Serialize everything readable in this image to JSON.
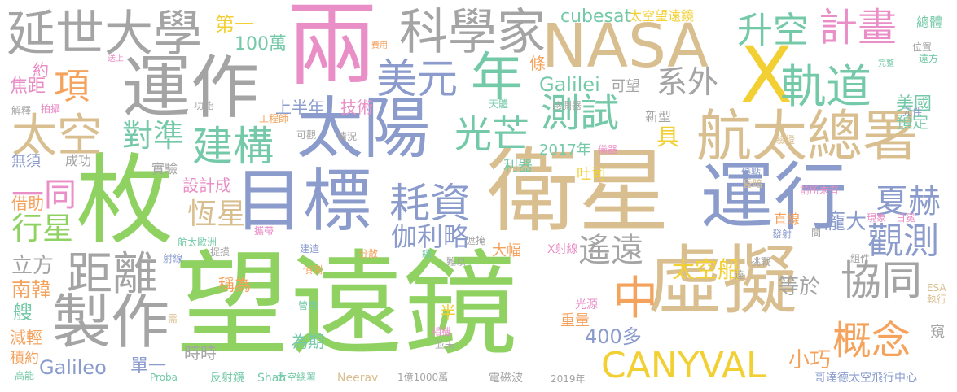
{
  "colors": {
    "green": "#8fd262",
    "tan": "#d9bf90",
    "blue": "#8a9bcc",
    "gray": "#a4a4a4",
    "pink": "#e98ec6",
    "yellow": "#f2d033",
    "orange": "#f5a25c",
    "teal": "#74c9a8"
  },
  "words": [
    {
      "text": "望遠鏡",
      "color": "green"
    },
    {
      "text": "衛星",
      "color": "tan"
    },
    {
      "text": "運行",
      "color": "blue"
    },
    {
      "text": "枚",
      "color": "green"
    },
    {
      "text": "目標",
      "color": "blue"
    },
    {
      "text": "兩",
      "color": "pink"
    },
    {
      "text": "虛擬",
      "color": "tan"
    },
    {
      "text": "運作",
      "color": "gray"
    },
    {
      "text": "太陽",
      "color": "blue"
    },
    {
      "text": "NASA",
      "color": "tan"
    },
    {
      "text": "X",
      "color": "yellow"
    },
    {
      "text": "製作",
      "color": "gray"
    },
    {
      "text": "航太總署",
      "color": "tan"
    },
    {
      "text": "延世大學",
      "color": "gray"
    },
    {
      "text": "科學家",
      "color": "gray"
    },
    {
      "text": "距離",
      "color": "gray"
    },
    {
      "text": "年",
      "color": "teal"
    },
    {
      "text": "耗資",
      "color": "blue"
    },
    {
      "text": "建構",
      "color": "teal"
    },
    {
      "text": "美元",
      "color": "blue"
    },
    {
      "text": "太空",
      "color": "tan"
    },
    {
      "text": "測試",
      "color": "teal"
    },
    {
      "text": "光芒",
      "color": "teal"
    },
    {
      "text": "軌道",
      "color": "teal"
    },
    {
      "text": "計畫",
      "color": "pink"
    },
    {
      "text": "升空",
      "color": "teal"
    },
    {
      "text": "中",
      "color": "orange"
    },
    {
      "text": "協同",
      "color": "gray"
    },
    {
      "text": "概念",
      "color": "orange"
    },
    {
      "text": "觀測",
      "color": "blue"
    },
    {
      "text": "CANYVAL",
      "color": "yellow"
    },
    {
      "text": "遙遠",
      "color": "gray"
    },
    {
      "text": "對準",
      "color": "teal"
    },
    {
      "text": "項",
      "color": "orange"
    },
    {
      "text": "恆星",
      "color": "tan"
    },
    {
      "text": "伽利略",
      "color": "blue"
    },
    {
      "text": "夏赫",
      "color": "blue"
    },
    {
      "text": "一同",
      "color": "pink"
    },
    {
      "text": "行星",
      "color": "green"
    },
    {
      "text": "系外",
      "color": "gray"
    },
    {
      "text": "Galileo",
      "color": "blue"
    },
    {
      "text": "Galilei",
      "color": "teal"
    },
    {
      "text": "cubesat",
      "color": "teal"
    },
    {
      "text": "400多",
      "color": "blue"
    },
    {
      "text": "小巧",
      "color": "orange"
    },
    {
      "text": "太空船",
      "color": "yellow"
    },
    {
      "text": "龐大",
      "color": "blue"
    },
    {
      "text": "美國",
      "color": "teal"
    },
    {
      "text": "具",
      "color": "yellow"
    },
    {
      "text": "等於",
      "color": "gray"
    },
    {
      "text": "第一",
      "color": "yellow"
    },
    {
      "text": "100萬",
      "color": "teal"
    },
    {
      "text": "立方",
      "color": "gray"
    },
    {
      "text": "南韓",
      "color": "orange"
    },
    {
      "text": "艘",
      "color": "teal"
    },
    {
      "text": "焦距",
      "color": "pink"
    },
    {
      "text": "約",
      "color": "pink"
    },
    {
      "text": "條",
      "color": "orange"
    },
    {
      "text": "技術",
      "color": "pink"
    },
    {
      "text": "設計成",
      "color": "pink"
    },
    {
      "text": "重量",
      "color": "orange"
    },
    {
      "text": "稱為",
      "color": "orange"
    },
    {
      "text": "為期",
      "color": "teal"
    },
    {
      "text": "借助",
      "color": "orange"
    },
    {
      "text": "減輕",
      "color": "orange"
    },
    {
      "text": "積約",
      "color": "orange"
    },
    {
      "text": "上半年",
      "color": "blue"
    },
    {
      "text": "2017年",
      "color": "teal"
    },
    {
      "text": "單一",
      "color": "blue"
    },
    {
      "text": "時時",
      "color": "gray"
    },
    {
      "text": "成功",
      "color": "gray"
    },
    {
      "text": "無須",
      "color": "blue"
    },
    {
      "text": "實驗",
      "color": "gray"
    },
    {
      "text": "利器",
      "color": "teal"
    },
    {
      "text": "吐司",
      "color": "yellow"
    },
    {
      "text": "大幅",
      "color": "orange"
    },
    {
      "text": "半",
      "color": "yellow"
    },
    {
      "text": "新型",
      "color": "gray"
    },
    {
      "text": "可望",
      "color": "gray"
    },
    {
      "text": "預定",
      "color": "teal"
    },
    {
      "text": "總體",
      "color": "teal"
    },
    {
      "text": "太空望遠鏡",
      "color": "yellow"
    },
    {
      "text": "直線",
      "color": "orange"
    },
    {
      "text": "窺",
      "color": "gray"
    },
    {
      "text": "哥達德太空飛行中心",
      "color": "blue"
    },
    {
      "text": "2019年",
      "color": "gray"
    },
    {
      "text": "電磁波",
      "color": "gray"
    },
    {
      "text": "1億1000萬",
      "color": "gray"
    },
    {
      "text": "Neerav",
      "color": "tan"
    },
    {
      "text": "太空總署",
      "color": "teal"
    },
    {
      "text": "Shah",
      "color": "teal"
    },
    {
      "text": "反射鏡",
      "color": "teal"
    },
    {
      "text": "Proba",
      "color": "teal"
    },
    {
      "text": "高能",
      "color": "teal"
    },
    {
      "text": "光源",
      "color": "pink"
    },
    {
      "text": "相機",
      "color": "pink"
    },
    {
      "text": "並未",
      "color": "gray"
    },
    {
      "text": "管用",
      "color": "teal"
    },
    {
      "text": "需",
      "color": "tan"
    },
    {
      "text": "偵測",
      "color": "orange"
    },
    {
      "text": "分散",
      "color": "orange"
    },
    {
      "text": "繞",
      "color": "teal"
    },
    {
      "text": "難以",
      "color": "gray"
    },
    {
      "text": "X射線",
      "color": "pink"
    },
    {
      "text": "建造",
      "color": "blue"
    },
    {
      "text": "遮掩",
      "color": "gray"
    },
    {
      "text": "射線",
      "color": "blue"
    },
    {
      "text": "捉摸",
      "color": "gray"
    },
    {
      "text": "攜帶",
      "color": "pink"
    },
    {
      "text": "航太歐洲",
      "color": "teal"
    },
    {
      "text": "挑戰",
      "color": "gray"
    },
    {
      "text": "組件",
      "color": "gray"
    },
    {
      "text": "ESA",
      "color": "tan"
    },
    {
      "text": "執行",
      "color": "tan"
    },
    {
      "text": "現象",
      "color": "pink"
    },
    {
      "text": "日冕",
      "color": "pink"
    },
    {
      "text": "發射",
      "color": "blue"
    },
    {
      "text": "遠",
      "color": "gray"
    },
    {
      "text": "間",
      "color": "gray"
    },
    {
      "text": "前所未有",
      "color": "pink"
    },
    {
      "text": "優點",
      "color": "blue"
    },
    {
      "text": "昏暗",
      "color": "tan"
    },
    {
      "text": "驗證",
      "color": "tan"
    },
    {
      "text": "元件",
      "color": "blue"
    },
    {
      "text": "儀器",
      "color": "pink"
    },
    {
      "text": "感測器",
      "color": "gray"
    },
    {
      "text": "天體",
      "color": "teal"
    },
    {
      "text": "情況",
      "color": "gray"
    },
    {
      "text": "可觀",
      "color": "gray"
    },
    {
      "text": "工程師",
      "color": "orange"
    },
    {
      "text": "功能",
      "color": "gray"
    },
    {
      "text": "拍攝",
      "color": "pink"
    },
    {
      "text": "解釋",
      "color": "gray"
    },
    {
      "text": "送上",
      "color": "pink"
    },
    {
      "text": "費用",
      "color": "orange"
    },
    {
      "text": "位置",
      "color": "gray"
    },
    {
      "text": "遠方",
      "color": "teal"
    },
    {
      "text": "完整",
      "color": "teal"
    }
  ]
}
